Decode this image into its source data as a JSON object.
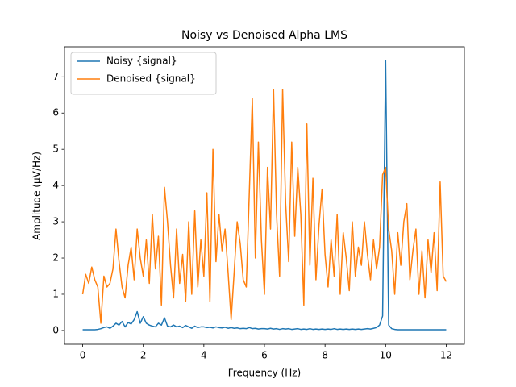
{
  "chart_data": {
    "type": "line",
    "title": "Noisy vs Denoised Alpha LMS",
    "x_label": "Frequency (Hz)",
    "y_label": "Amplitude (μV/Hz)",
    "x": [
      0,
      0.1,
      0.2,
      0.3,
      0.4,
      0.5,
      0.6,
      0.7,
      0.8,
      0.9,
      1.0,
      1.1,
      1.2,
      1.3,
      1.4,
      1.5,
      1.6,
      1.7,
      1.8,
      1.9,
      2.0,
      2.1,
      2.2,
      2.3,
      2.4,
      2.5,
      2.6,
      2.7,
      2.8,
      2.9,
      3.0,
      3.1,
      3.2,
      3.3,
      3.4,
      3.5,
      3.6,
      3.7,
      3.8,
      3.9,
      4.0,
      4.1,
      4.2,
      4.3,
      4.4,
      4.5,
      4.6,
      4.7,
      4.8,
      4.9,
      5.0,
      5.1,
      5.2,
      5.3,
      5.4,
      5.5,
      5.6,
      5.7,
      5.8,
      5.9,
      6.0,
      6.1,
      6.2,
      6.3,
      6.4,
      6.5,
      6.6,
      6.7,
      6.8,
      6.9,
      7.0,
      7.1,
      7.2,
      7.3,
      7.4,
      7.5,
      7.6,
      7.7,
      7.8,
      7.9,
      8.0,
      8.1,
      8.2,
      8.3,
      8.4,
      8.5,
      8.6,
      8.7,
      8.8,
      8.9,
      9.0,
      9.1,
      9.2,
      9.3,
      9.4,
      9.5,
      9.6,
      9.7,
      9.8,
      9.9,
      10.0,
      10.1,
      10.2,
      10.3,
      10.4,
      10.5,
      10.6,
      10.7,
      10.8,
      10.9,
      11.0,
      11.1,
      11.2,
      11.3,
      11.4,
      11.5,
      11.6,
      11.7,
      11.8,
      11.9,
      12.0
    ],
    "series": [
      {
        "name": "Noisy {signal}",
        "color": "#1f77b4",
        "values": [
          0.02,
          0.02,
          0.02,
          0.02,
          0.02,
          0.03,
          0.05,
          0.08,
          0.1,
          0.06,
          0.12,
          0.2,
          0.15,
          0.25,
          0.1,
          0.22,
          0.18,
          0.3,
          0.52,
          0.2,
          0.38,
          0.2,
          0.15,
          0.12,
          0.1,
          0.2,
          0.15,
          0.35,
          0.12,
          0.1,
          0.15,
          0.1,
          0.12,
          0.08,
          0.14,
          0.1,
          0.06,
          0.12,
          0.08,
          0.1,
          0.1,
          0.08,
          0.09,
          0.07,
          0.1,
          0.08,
          0.07,
          0.09,
          0.06,
          0.08,
          0.06,
          0.07,
          0.05,
          0.06,
          0.05,
          0.08,
          0.05,
          0.06,
          0.04,
          0.05,
          0.05,
          0.04,
          0.06,
          0.04,
          0.05,
          0.03,
          0.05,
          0.04,
          0.05,
          0.03,
          0.04,
          0.05,
          0.03,
          0.04,
          0.03,
          0.05,
          0.03,
          0.04,
          0.03,
          0.04,
          0.03,
          0.04,
          0.03,
          0.05,
          0.03,
          0.04,
          0.03,
          0.04,
          0.03,
          0.04,
          0.03,
          0.04,
          0.03,
          0.04,
          0.05,
          0.04,
          0.06,
          0.08,
          0.15,
          0.4,
          7.45,
          0.15,
          0.05,
          0.03,
          0.02,
          0.02,
          0.02,
          0.02,
          0.02,
          0.02,
          0.02,
          0.02,
          0.02,
          0.02,
          0.02,
          0.02,
          0.02,
          0.02,
          0.02,
          0.02,
          0.02
        ]
      },
      {
        "name": "Denoised {signal}",
        "color": "#ff7f0e",
        "values": [
          1.0,
          1.55,
          1.3,
          1.75,
          1.4,
          1.2,
          0.2,
          1.5,
          1.2,
          1.3,
          1.7,
          2.8,
          1.9,
          1.2,
          0.9,
          1.8,
          2.3,
          1.4,
          2.8,
          2.0,
          1.5,
          2.5,
          1.3,
          3.2,
          1.7,
          2.6,
          0.7,
          3.95,
          3.0,
          1.8,
          0.9,
          2.8,
          1.3,
          2.1,
          0.8,
          3.0,
          1.0,
          3.3,
          1.2,
          2.5,
          1.5,
          3.8,
          0.8,
          5.0,
          1.9,
          3.2,
          2.2,
          2.8,
          1.6,
          0.3,
          1.6,
          3.0,
          2.4,
          1.4,
          1.2,
          3.8,
          6.4,
          2.0,
          5.2,
          2.5,
          1.0,
          4.5,
          2.8,
          6.65,
          3.2,
          1.5,
          6.65,
          3.5,
          1.9,
          5.2,
          2.6,
          4.5,
          3.2,
          0.7,
          5.7,
          1.8,
          4.2,
          1.4,
          2.9,
          3.9,
          2.1,
          1.2,
          2.5,
          1.5,
          3.2,
          1.0,
          2.7,
          2.0,
          1.1,
          3.0,
          1.5,
          2.3,
          1.8,
          3.0,
          2.1,
          1.4,
          2.5,
          1.7,
          2.3,
          4.3,
          4.5,
          2.8,
          2.2,
          1.0,
          2.7,
          1.8,
          3.0,
          3.5,
          1.4,
          2.2,
          2.8,
          1.0,
          2.2,
          0.9,
          2.5,
          1.6,
          2.7,
          1.1,
          4.1,
          1.5,
          1.35
        ]
      }
    ],
    "xlim": [
      -0.6,
      12.6
    ],
    "ylim": [
      -0.38,
      7.83
    ],
    "xticks": [
      0,
      2,
      4,
      6,
      8,
      10,
      12
    ],
    "yticks": [
      0,
      1,
      2,
      3,
      4,
      5,
      6,
      7
    ],
    "legend": "upper left"
  }
}
